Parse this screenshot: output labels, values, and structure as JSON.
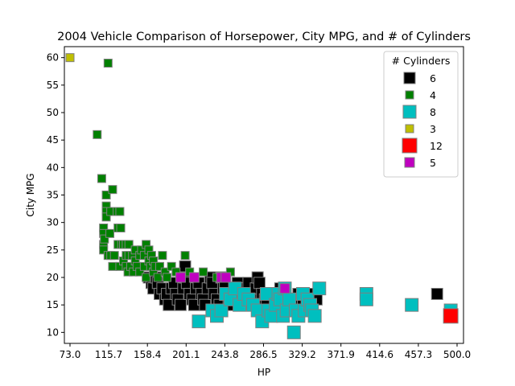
{
  "chart_data": {
    "type": "scatter",
    "title": "2004 Vehicle Comparison of Horsepower, City MPG, and # of Cylinders",
    "xlabel": "HP",
    "ylabel": "City MPG",
    "xlim": [
      73.0,
      500.0
    ],
    "ylim": [
      8,
      62
    ],
    "xticks": [
      73.0,
      115.7,
      158.4,
      201.1,
      243.8,
      286.5,
      329.2,
      371.9,
      414.6,
      457.3,
      500.0
    ],
    "xtick_labels": [
      "73.0",
      "115.7",
      "158.4",
      "201.1",
      "243.8",
      "286.5",
      "329.2",
      "371.9",
      "414.6",
      "457.3",
      "500.0"
    ],
    "yticks": [
      10,
      15,
      20,
      25,
      30,
      35,
      40,
      45,
      50,
      55,
      60
    ],
    "ytick_labels": [
      "10",
      "15",
      "20",
      "25",
      "30",
      "35",
      "40",
      "45",
      "50",
      "55",
      "60"
    ],
    "grid": false,
    "legend": {
      "title": "# Cylinders",
      "placement": "top-right"
    },
    "series": [
      {
        "name": "6",
        "color": "#000000",
        "points": [
          [
            160,
            20
          ],
          [
            163,
            19
          ],
          [
            165,
            18
          ],
          [
            168,
            20
          ],
          [
            170,
            19
          ],
          [
            172,
            17
          ],
          [
            175,
            18
          ],
          [
            178,
            16
          ],
          [
            180,
            17
          ],
          [
            182,
            15
          ],
          [
            185,
            18
          ],
          [
            188,
            19
          ],
          [
            190,
            17
          ],
          [
            192,
            16
          ],
          [
            195,
            15
          ],
          [
            198,
            18
          ],
          [
            200,
            22
          ],
          [
            200,
            20
          ],
          [
            202,
            19
          ],
          [
            205,
            17
          ],
          [
            208,
            16
          ],
          [
            210,
            15
          ],
          [
            212,
            18
          ],
          [
            215,
            19
          ],
          [
            218,
            17
          ],
          [
            220,
            16
          ],
          [
            222,
            15
          ],
          [
            225,
            18
          ],
          [
            228,
            20
          ],
          [
            230,
            19
          ],
          [
            232,
            17
          ],
          [
            235,
            16
          ],
          [
            238,
            15
          ],
          [
            240,
            20
          ],
          [
            242,
            18
          ],
          [
            244,
            19
          ],
          [
            246,
            17
          ],
          [
            248,
            16
          ],
          [
            250,
            15
          ],
          [
            255,
            18
          ],
          [
            258,
            19
          ],
          [
            260,
            17
          ],
          [
            262,
            16
          ],
          [
            265,
            15
          ],
          [
            268,
            18
          ],
          [
            270,
            19
          ],
          [
            272,
            17
          ],
          [
            275,
            16
          ],
          [
            278,
            18
          ],
          [
            280,
            20
          ],
          [
            282,
            19
          ],
          [
            285,
            17
          ],
          [
            288,
            16
          ],
          [
            290,
            15
          ],
          [
            295,
            17
          ],
          [
            300,
            16
          ],
          [
            305,
            18
          ],
          [
            310,
            17
          ],
          [
            315,
            16
          ],
          [
            320,
            15
          ],
          [
            325,
            17
          ],
          [
            330,
            16
          ],
          [
            335,
            15
          ],
          [
            340,
            17
          ],
          [
            345,
            16
          ],
          [
            478,
            17
          ]
        ]
      },
      {
        "name": "4",
        "color": "#008000",
        "points": [
          [
            103,
            46
          ],
          [
            108,
            38
          ],
          [
            110,
            29
          ],
          [
            110,
            28
          ],
          [
            110,
            26
          ],
          [
            110,
            25
          ],
          [
            111,
            27
          ],
          [
            113,
            35
          ],
          [
            113,
            33
          ],
          [
            113,
            32
          ],
          [
            113,
            31
          ],
          [
            115,
            59
          ],
          [
            115,
            24
          ],
          [
            117,
            28
          ],
          [
            118,
            24
          ],
          [
            118,
            32
          ],
          [
            120,
            36
          ],
          [
            120,
            22
          ],
          [
            122,
            24
          ],
          [
            125,
            32
          ],
          [
            126,
            26
          ],
          [
            126,
            29
          ],
          [
            128,
            32
          ],
          [
            128,
            22
          ],
          [
            129,
            29
          ],
          [
            130,
            26
          ],
          [
            132,
            26
          ],
          [
            132,
            23
          ],
          [
            135,
            26
          ],
          [
            135,
            24
          ],
          [
            135,
            22
          ],
          [
            137,
            21
          ],
          [
            138,
            26
          ],
          [
            138,
            24
          ],
          [
            140,
            22
          ],
          [
            142,
            24
          ],
          [
            143,
            21
          ],
          [
            145,
            25
          ],
          [
            145,
            23
          ],
          [
            147,
            22
          ],
          [
            150,
            24
          ],
          [
            150,
            21
          ],
          [
            152,
            25
          ],
          [
            155,
            24
          ],
          [
            155,
            22
          ],
          [
            157,
            26
          ],
          [
            157,
            20
          ],
          [
            160,
            25
          ],
          [
            160,
            23
          ],
          [
            162,
            22
          ],
          [
            163,
            24
          ],
          [
            165,
            21
          ],
          [
            165,
            23
          ],
          [
            167,
            22
          ],
          [
            170,
            20
          ],
          [
            172,
            22
          ],
          [
            175,
            24
          ],
          [
            178,
            21
          ],
          [
            180,
            20
          ],
          [
            185,
            22
          ],
          [
            190,
            21
          ],
          [
            195,
            20
          ],
          [
            200,
            24
          ],
          [
            205,
            21
          ],
          [
            210,
            20
          ],
          [
            220,
            21
          ],
          [
            235,
            20
          ],
          [
            250,
            21
          ]
        ]
      },
      {
        "name": "8",
        "color": "#00bfbf",
        "points": [
          [
            215,
            12
          ],
          [
            230,
            14
          ],
          [
            235,
            13
          ],
          [
            240,
            14
          ],
          [
            245,
            17
          ],
          [
            250,
            16
          ],
          [
            255,
            18
          ],
          [
            260,
            15
          ],
          [
            265,
            17
          ],
          [
            270,
            16
          ],
          [
            275,
            15
          ],
          [
            280,
            14
          ],
          [
            285,
            12
          ],
          [
            290,
            17
          ],
          [
            292,
            14
          ],
          [
            295,
            13
          ],
          [
            300,
            15
          ],
          [
            303,
            17
          ],
          [
            305,
            16
          ],
          [
            308,
            13
          ],
          [
            310,
            18
          ],
          [
            312,
            14
          ],
          [
            315,
            16
          ],
          [
            320,
            10
          ],
          [
            322,
            14
          ],
          [
            325,
            13
          ],
          [
            330,
            17
          ],
          [
            332,
            14
          ],
          [
            335,
            16
          ],
          [
            338,
            15
          ],
          [
            340,
            14
          ],
          [
            343,
            13
          ],
          [
            348,
            18
          ],
          [
            400,
            17
          ],
          [
            400,
            16
          ],
          [
            450,
            15
          ],
          [
            493,
            14
          ]
        ]
      },
      {
        "name": "3",
        "color": "#bfbf00",
        "points": [
          [
            73,
            60
          ]
        ]
      },
      {
        "name": "12",
        "color": "#ff0000",
        "points": [
          [
            493,
            13
          ]
        ]
      },
      {
        "name": "5",
        "color": "#bf00bf",
        "points": [
          [
            195,
            20
          ],
          [
            210,
            20
          ],
          [
            240,
            20
          ],
          [
            245,
            20
          ],
          [
            310,
            18
          ]
        ]
      }
    ]
  }
}
